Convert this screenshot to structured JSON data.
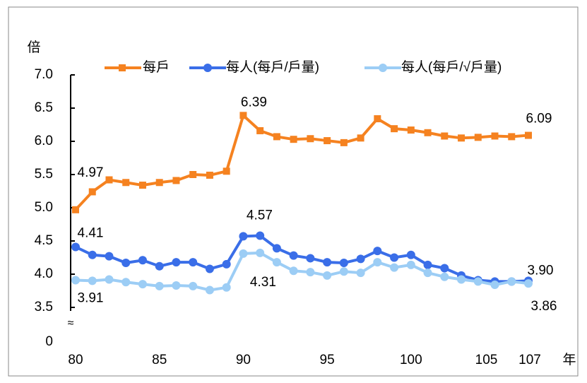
{
  "chart_data": {
    "type": "line",
    "y_label": "倍",
    "x_label": "年",
    "x": [
      80,
      81,
      82,
      83,
      84,
      85,
      86,
      87,
      88,
      89,
      90,
      91,
      92,
      93,
      94,
      95,
      96,
      97,
      98,
      99,
      100,
      101,
      102,
      103,
      104,
      105,
      106,
      107
    ],
    "xlim": [
      80,
      107
    ],
    "xticks": [
      80,
      85,
      90,
      95,
      100,
      105,
      107
    ],
    "ylim": [
      0,
      7.0
    ],
    "axis_break": [
      0,
      3.5
    ],
    "yticks": [
      0,
      3.5,
      4.0,
      4.5,
      5.0,
      5.5,
      6.0,
      6.5,
      7.0
    ],
    "yticks_labels": [
      "0",
      "3.5",
      "4.0",
      "4.5",
      "5.0",
      "5.5",
      "6.0",
      "6.5",
      "7.0"
    ],
    "series": [
      {
        "name": "每戶",
        "color": "#f58220",
        "marker": "square",
        "values": [
          4.97,
          5.24,
          5.42,
          5.38,
          5.34,
          5.38,
          5.41,
          5.5,
          5.49,
          5.55,
          6.39,
          6.16,
          6.07,
          6.03,
          6.04,
          6.01,
          5.98,
          6.05,
          6.34,
          6.19,
          6.17,
          6.13,
          6.08,
          6.05,
          6.06,
          6.08,
          6.07,
          6.09
        ],
        "value_labels": [
          "4.97",
          null,
          null,
          null,
          null,
          null,
          null,
          null,
          null,
          null,
          "6.39",
          null,
          null,
          null,
          null,
          null,
          null,
          null,
          null,
          null,
          null,
          null,
          null,
          null,
          null,
          null,
          null,
          "6.09"
        ]
      },
      {
        "name": "每人(每戶/戶量)",
        "color": "#3a6ee8",
        "marker": "circle",
        "values": [
          4.41,
          4.29,
          4.27,
          4.17,
          4.21,
          4.12,
          4.18,
          4.18,
          4.08,
          4.15,
          4.57,
          4.58,
          4.39,
          4.28,
          4.24,
          4.18,
          4.17,
          4.23,
          4.35,
          4.25,
          4.29,
          4.14,
          4.09,
          3.98,
          3.91,
          3.89,
          3.89,
          3.9
        ],
        "value_labels": [
          "4.41",
          null,
          null,
          null,
          null,
          null,
          null,
          null,
          null,
          null,
          "4.57",
          null,
          null,
          null,
          null,
          null,
          null,
          null,
          null,
          null,
          null,
          null,
          null,
          null,
          null,
          null,
          null,
          "3.90"
        ]
      },
      {
        "name": "每人(每戶/√戶量)",
        "color": "#9ccdf5",
        "marker": "circle",
        "values": [
          3.91,
          3.9,
          3.92,
          3.88,
          3.85,
          3.82,
          3.83,
          3.82,
          3.76,
          3.8,
          4.31,
          4.32,
          4.18,
          4.05,
          4.03,
          3.98,
          4.04,
          4.02,
          4.18,
          4.1,
          4.14,
          4.02,
          3.96,
          3.92,
          3.89,
          3.84,
          3.89,
          3.86
        ],
        "value_labels": [
          "3.91",
          null,
          null,
          null,
          null,
          null,
          null,
          null,
          null,
          null,
          "4.31",
          null,
          null,
          null,
          null,
          null,
          null,
          null,
          null,
          null,
          null,
          null,
          null,
          null,
          null,
          null,
          null,
          "3.86"
        ]
      }
    ]
  }
}
